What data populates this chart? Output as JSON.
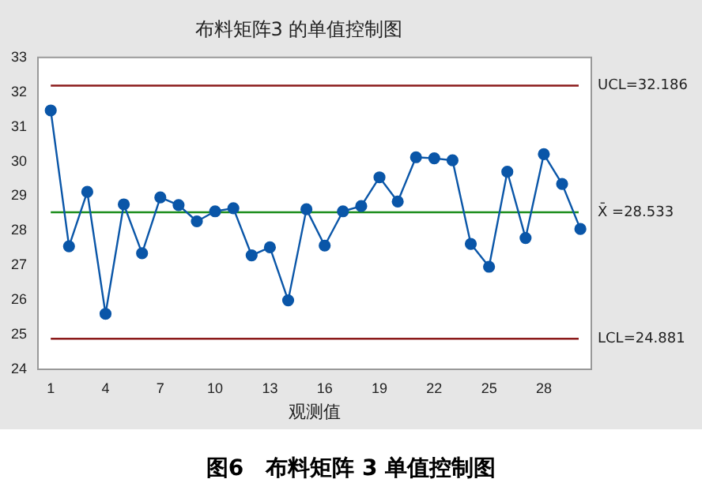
{
  "chart_data": {
    "type": "line",
    "title": "布料矩阵3 的单值控制图",
    "xlabel": "观测值",
    "x": [
      1,
      2,
      3,
      4,
      5,
      6,
      7,
      8,
      9,
      10,
      11,
      12,
      13,
      14,
      15,
      16,
      17,
      18,
      19,
      20,
      21,
      22,
      23,
      24,
      25,
      26,
      27,
      28,
      29,
      30
    ],
    "series": [
      {
        "color": "#0a56a8",
        "values": [
          31.47,
          27.55,
          29.12,
          25.6,
          28.76,
          27.35,
          28.96,
          28.74,
          28.27,
          28.56,
          28.65,
          27.29,
          27.52,
          25.99,
          28.62,
          27.57,
          28.56,
          28.71,
          29.54,
          28.84,
          30.12,
          30.09,
          30.03,
          27.62,
          26.96,
          29.7,
          27.79,
          30.21,
          29.35,
          28.05
        ]
      }
    ],
    "xlim": [
      0.3,
      30.6
    ],
    "xticks": [
      1,
      4,
      7,
      10,
      13,
      16,
      19,
      22,
      25,
      28
    ],
    "ylim": [
      24,
      33
    ],
    "yticks": [
      24,
      25,
      26,
      27,
      28,
      29,
      30,
      31,
      32,
      33
    ],
    "ref_lines": [
      {
        "axis": "y",
        "value": 32.186,
        "label": "UCL=32.186",
        "color": "#8b1a1a"
      },
      {
        "axis": "y",
        "value": 28.533,
        "label": "X̄ =28.533",
        "color": "#1a8c1a"
      },
      {
        "axis": "y",
        "value": 24.881,
        "label": "LCL=24.881",
        "color": "#8b1a1a"
      }
    ],
    "annotations": [
      "图6　布料矩阵 3 单值控制图"
    ],
    "grid": false,
    "legend": false,
    "marker": "circle",
    "line_style": "solid"
  }
}
